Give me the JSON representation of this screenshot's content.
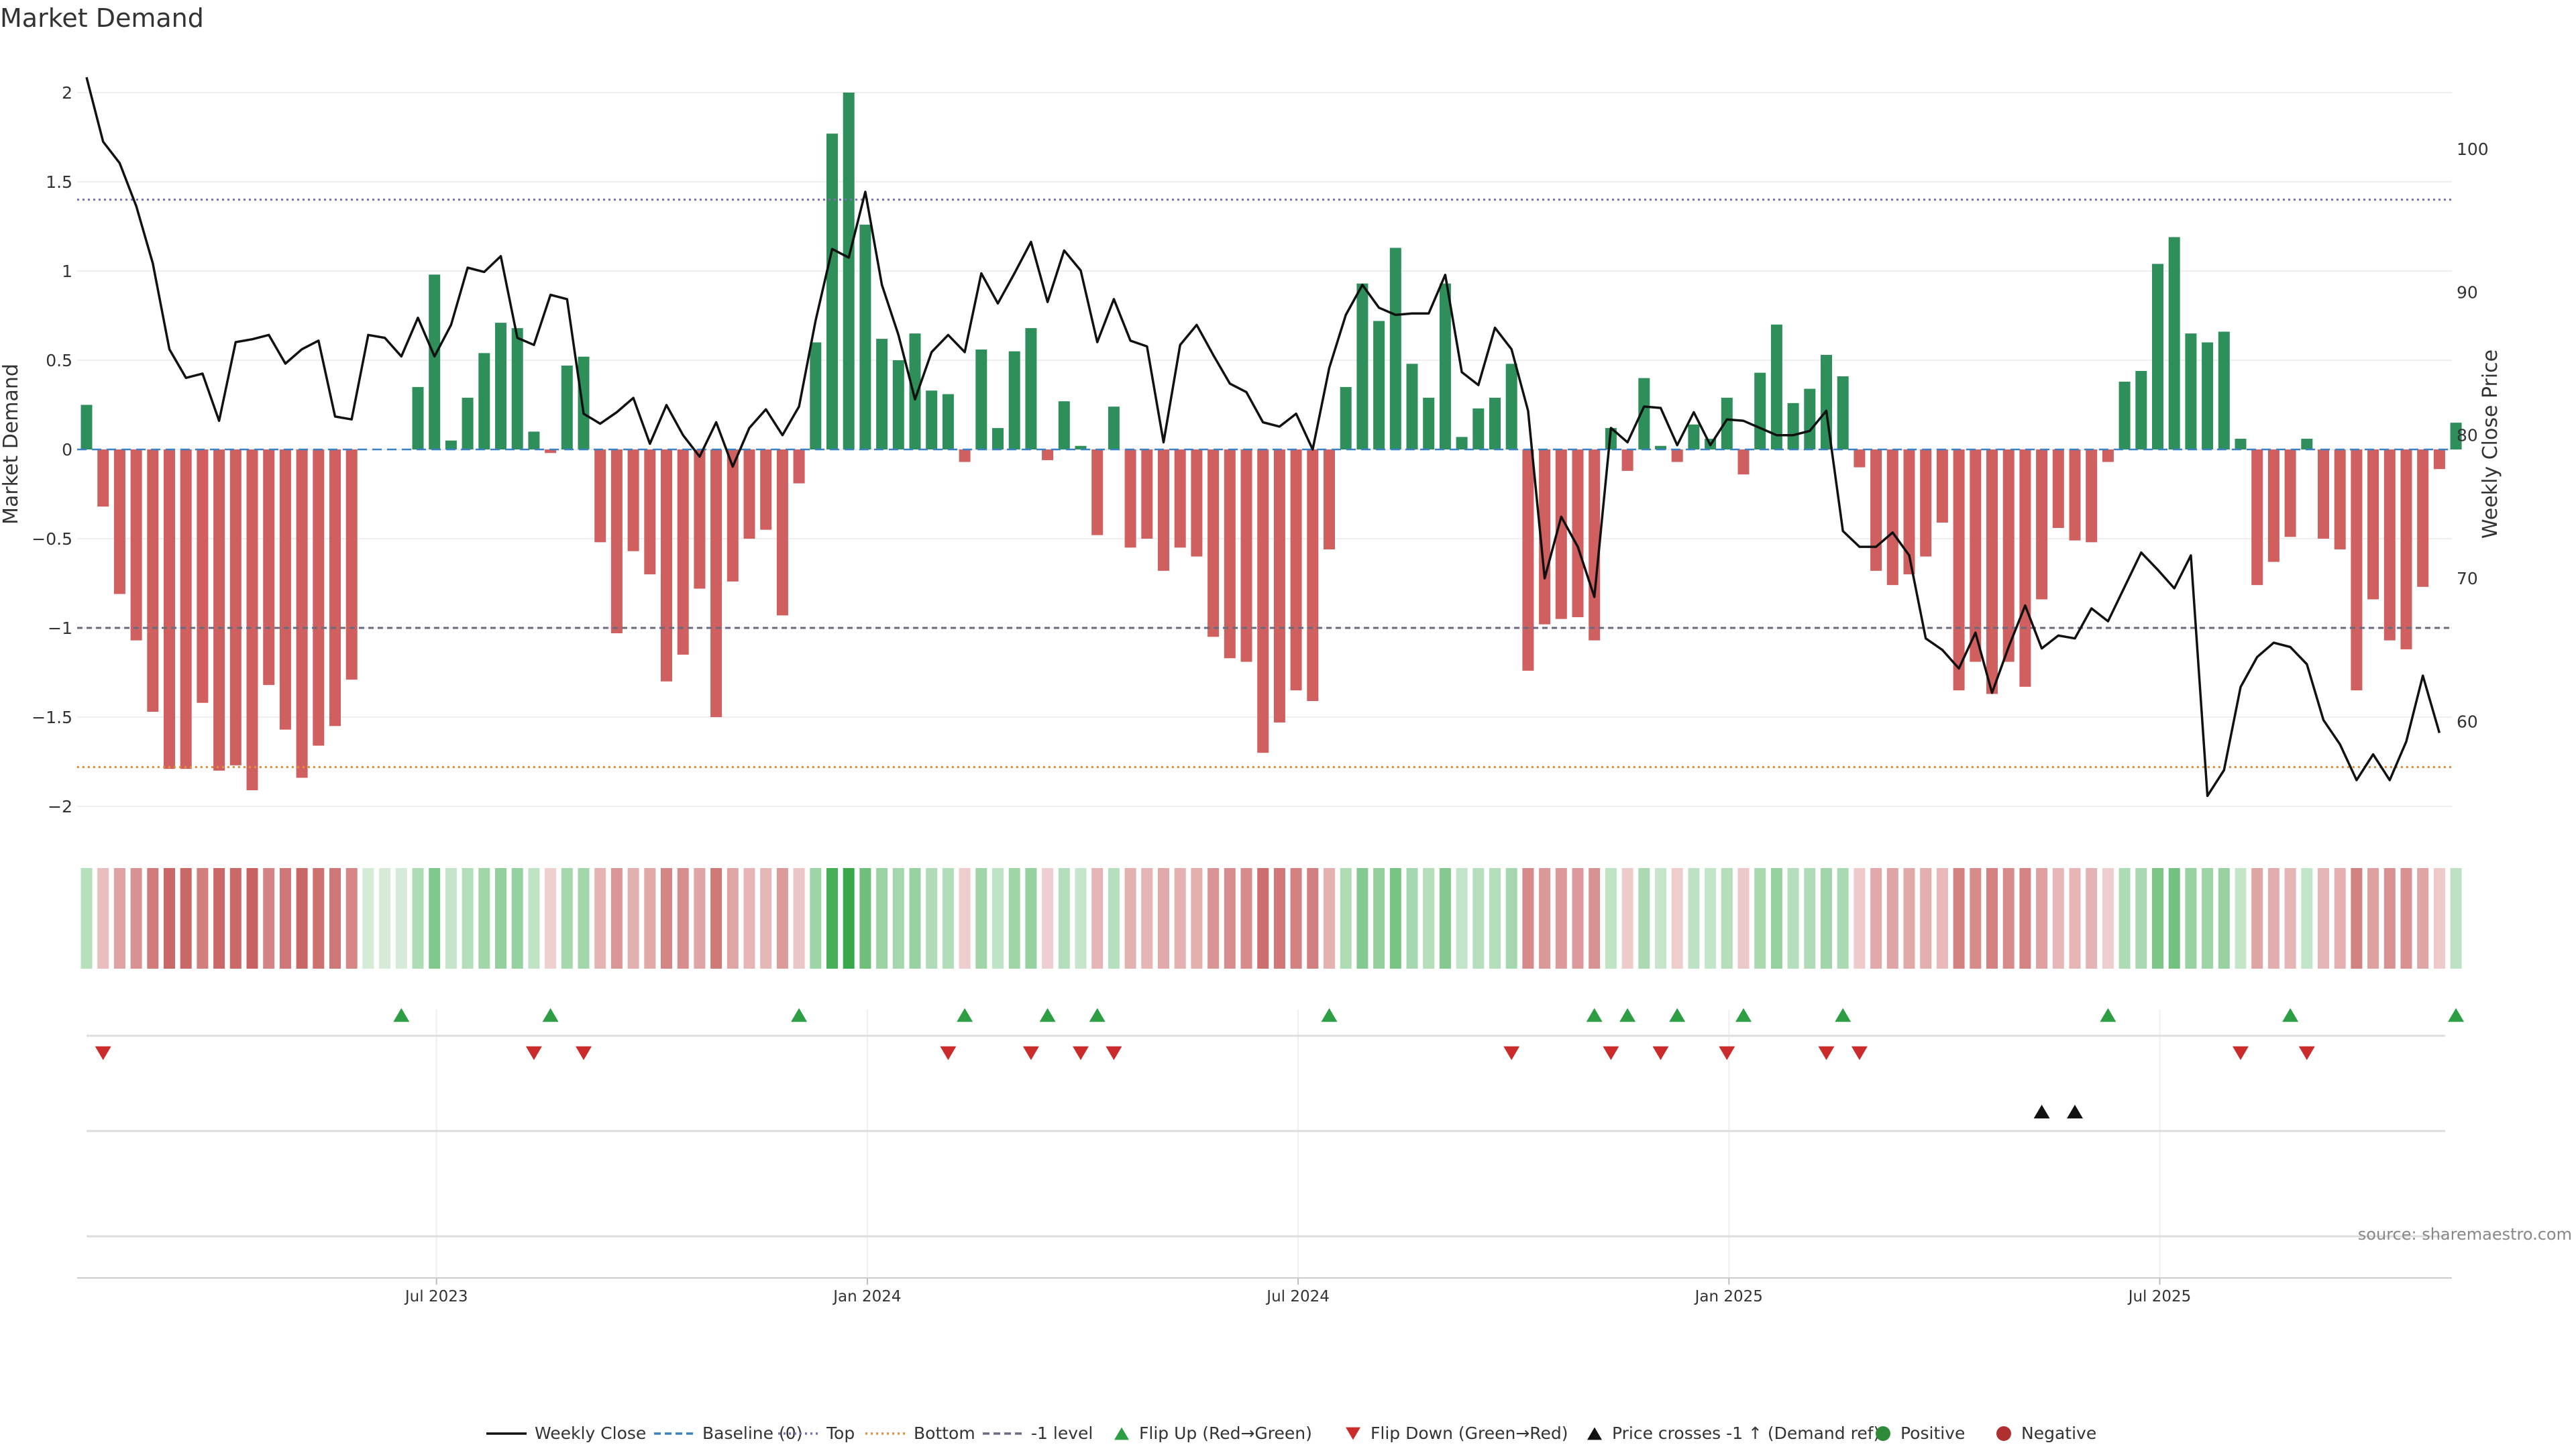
{
  "chart_data": {
    "type": "bar",
    "title": "Market Demand",
    "ylabel_left": "Market Demand",
    "ylabel_right": "Weekly Close Price",
    "y_left_range": [
      -2.15,
      2.15
    ],
    "y_left_ticks": [
      2,
      1.5,
      1,
      0.5,
      0,
      -0.5,
      -1,
      -1.5,
      -2
    ],
    "y_left_tick_labels": [
      "2",
      "1.5",
      "1",
      "0.5",
      "0",
      "−0.5",
      "−1",
      "−1.5",
      "−2"
    ],
    "y_right_range": [
      52.2,
      105.8
    ],
    "y_right_ticks": [
      100,
      90,
      80,
      70,
      60
    ],
    "y_right_tick_labels": [
      "100",
      "90",
      "80",
      "70",
      "60"
    ],
    "reference_lines": [
      {
        "name": "Top",
        "value": 1.4,
        "color": "#7b6fb0",
        "style": "dotted"
      },
      {
        "name": "-1 level",
        "value": -1.0,
        "color": "#6b6b80",
        "style": "dashed"
      },
      {
        "name": "Bottom",
        "value": -1.78,
        "color": "#e0913a",
        "style": "dotted"
      }
    ],
    "x_labels": [
      "Jul 2023",
      "Jan 2024",
      "Jul 2024",
      "Jan 2025",
      "Jul 2025"
    ],
    "x_label_week_index": [
      21,
      47,
      73,
      99,
      125
    ],
    "demand": [
      0.25,
      -0.32,
      -0.81,
      -1.07,
      -1.47,
      -1.79,
      -1.79,
      -1.42,
      -1.8,
      -1.77,
      -1.91,
      -1.32,
      -1.57,
      -1.84,
      -1.66,
      -1.55,
      -1.29,
      0.0,
      0.0,
      0.0,
      0.35,
      0.98,
      0.05,
      0.29,
      0.54,
      0.71,
      0.68,
      0.1,
      -0.02,
      0.47,
      0.52,
      -0.52,
      -1.03,
      -0.57,
      -0.7,
      -1.3,
      -1.15,
      -0.78,
      -1.5,
      -0.74,
      -0.5,
      -0.45,
      -0.93,
      -0.19,
      0.6,
      1.77,
      2.0,
      1.26,
      0.62,
      0.5,
      0.65,
      0.33,
      0.31,
      -0.07,
      0.56,
      0.12,
      0.55,
      0.68,
      -0.06,
      0.27,
      0.02,
      -0.48,
      0.24,
      -0.55,
      -0.5,
      -0.68,
      -0.55,
      -0.6,
      -1.05,
      -1.17,
      -1.19,
      -1.7,
      -1.53,
      -1.35,
      -1.41,
      -0.56,
      0.35,
      0.93,
      0.72,
      1.13,
      0.48,
      0.29,
      0.93,
      0.07,
      0.23,
      0.29,
      0.48,
      -1.24,
      -0.98,
      -0.95,
      -0.94,
      -1.07,
      0.12,
      -0.12,
      0.4,
      0.02,
      -0.07,
      0.14,
      0.06,
      0.29,
      -0.14,
      0.43,
      0.7,
      0.26,
      0.34,
      0.53,
      0.41,
      -0.1,
      -0.68,
      -0.76,
      -0.7,
      -0.6,
      -0.41,
      -1.35,
      -1.19,
      -1.37,
      -1.19,
      -1.33,
      -0.84,
      -0.44,
      -0.51,
      -0.52,
      -0.07,
      0.38,
      0.44,
      1.04,
      1.19,
      0.65,
      0.6,
      0.66,
      0.06,
      -0.76,
      -0.63,
      -0.49,
      0.06,
      -0.5,
      -0.56,
      -1.35,
      -0.84,
      -1.07,
      -1.12,
      -0.77,
      -0.11,
      0.15
    ],
    "weekly_close": [
      105,
      100.5,
      99,
      96,
      92,
      86,
      84,
      84.3,
      81,
      86.5,
      86.7,
      87,
      85,
      86,
      86.6,
      81.3,
      81.1,
      87,
      86.8,
      85.5,
      88.2,
      85.5,
      87.7,
      91.7,
      91.4,
      92.5,
      86.8,
      86.3,
      89.8,
      89.5,
      81.5,
      80.8,
      81.6,
      82.6,
      79.4,
      82.1,
      80,
      78.5,
      80.9,
      77.8,
      80.5,
      81.8,
      80,
      82,
      88,
      93,
      92.4,
      97,
      90.5,
      87,
      82.5,
      85.8,
      87,
      85.8,
      91.3,
      89.2,
      91.3,
      93.5,
      89.3,
      92.9,
      91.5,
      86.5,
      89.5,
      86.6,
      86.2,
      79.5,
      86.3,
      87.7,
      85.6,
      83.6,
      83,
      80.9,
      80.6,
      81.5,
      79,
      84.7,
      88.4,
      90.5,
      88.9,
      88.4,
      88.5,
      88.5,
      91.2,
      84.4,
      83.5,
      87.5,
      86,
      81.7,
      70,
      74.3,
      72.2,
      68.7,
      80.5,
      79.5,
      82,
      81.9,
      79.3,
      81.6,
      79.3,
      81.1,
      81,
      80.5,
      80,
      80,
      80.3,
      81.7,
      73.3,
      72.2,
      72.2,
      73.2,
      71.6,
      65.8,
      65,
      63.7,
      66.2,
      62,
      65.2,
      68.1,
      65.1,
      66,
      65.8,
      67.9,
      67,
      69.4,
      71.8,
      70.6,
      69.3,
      71.6,
      54.8,
      56.6,
      62.4,
      64.5,
      65.5,
      65.2,
      64,
      60.1,
      58.4,
      55.9,
      57.7,
      55.9,
      58.6,
      63.2,
      59.2
    ],
    "flip_up_weeks": [
      19,
      28,
      43,
      53,
      58,
      61,
      75,
      91,
      93,
      96,
      100,
      106,
      122,
      133,
      143
    ],
    "flip_down_weeks": [
      1,
      27,
      30,
      52,
      57,
      60,
      62,
      86,
      92,
      95,
      99,
      105,
      107,
      130,
      134
    ],
    "price_cross_weeks": [
      118,
      120
    ],
    "series_colors": {
      "positive": "#2f8f5b",
      "negative": "#d06060",
      "weekly_close": "#111111",
      "baseline": "#3b82c4",
      "flip_up": "#2e9e44",
      "flip_down": "#cc2b2b",
      "price_cross": "#111111"
    },
    "legend": [
      {
        "label": "Weekly Close",
        "marker": "line-solid",
        "color": "#111111"
      },
      {
        "label": "Baseline (0)",
        "marker": "line-dashed",
        "color": "#3b82c4"
      },
      {
        "label": "Top",
        "marker": "line-dotted",
        "color": "#7b6fb0"
      },
      {
        "label": "Bottom",
        "marker": "line-dotted",
        "color": "#e0913a"
      },
      {
        "label": "-1 level",
        "marker": "line-dashed",
        "color": "#6b6b80"
      },
      {
        "label": "Flip Up (Red→Green)",
        "marker": "triangle-up",
        "color": "#2e9e44"
      },
      {
        "label": "Flip Down (Green→Red)",
        "marker": "triangle-down",
        "color": "#cc2b2b"
      },
      {
        "label": "Price crosses -1 ↑ (Demand ref)",
        "marker": "triangle-up",
        "color": "#111111"
      },
      {
        "label": "Positive",
        "marker": "circle",
        "color": "#2e8b3a"
      },
      {
        "label": "Negative",
        "marker": "circle",
        "color": "#b03030"
      }
    ],
    "source": "source: sharemaestro.com"
  }
}
